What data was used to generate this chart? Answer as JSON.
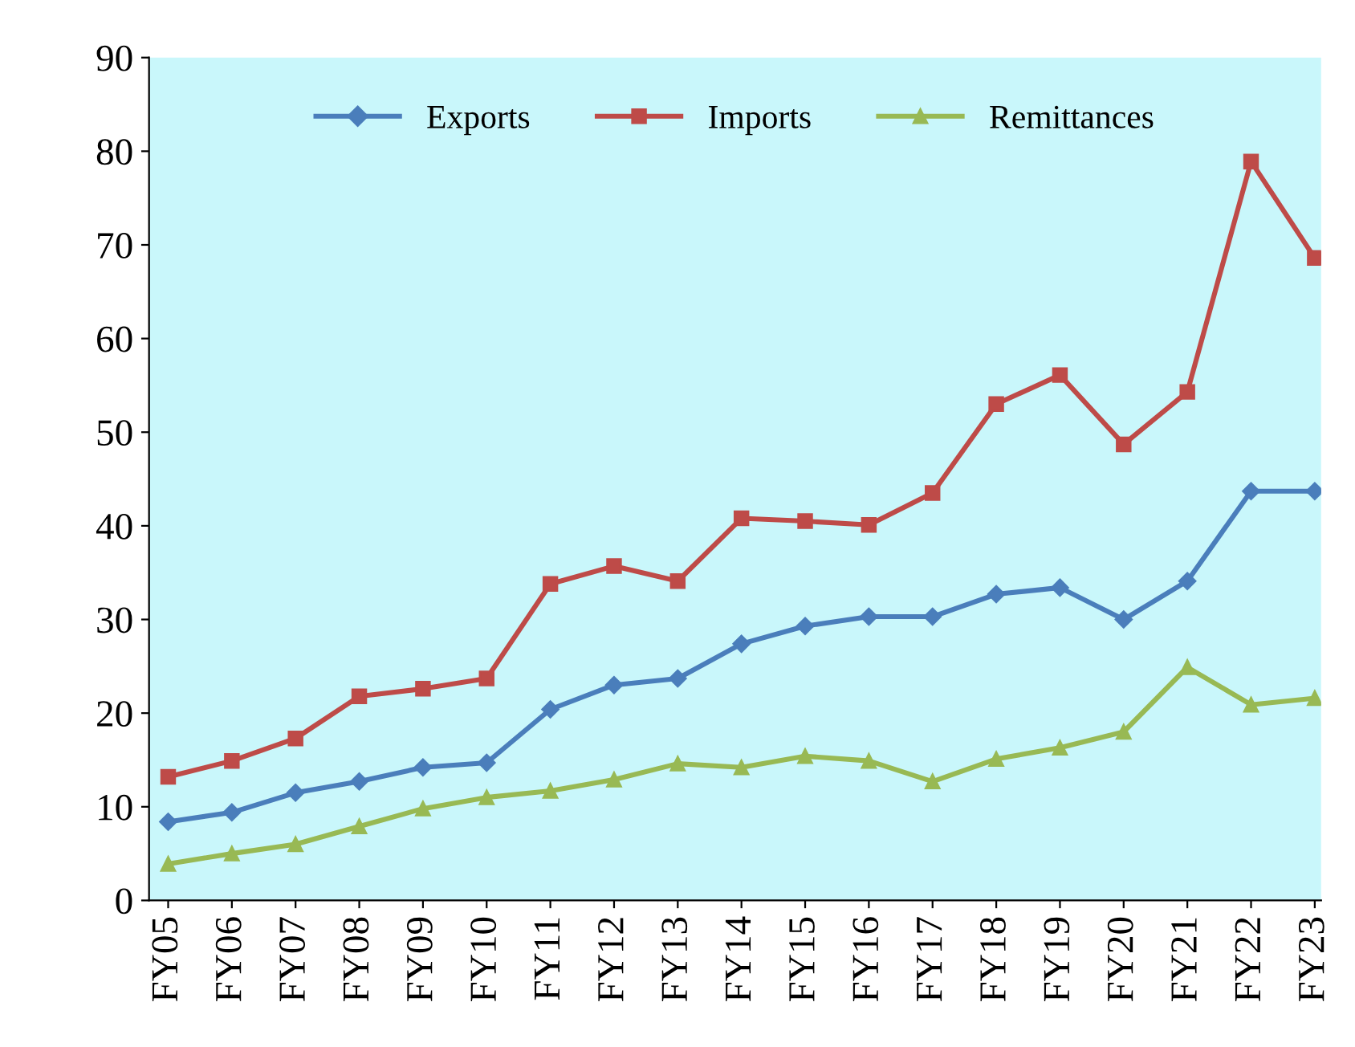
{
  "chart_data": {
    "type": "line",
    "categories": [
      "FY05",
      "FY06",
      "FY07",
      "FY08",
      "FY09",
      "FY10",
      "FY11",
      "FY12",
      "FY13",
      "FY14",
      "FY15",
      "FY16",
      "FY17",
      "FY18",
      "FY19",
      "FY20",
      "FY21",
      "FY22",
      "FY23"
    ],
    "series": [
      {
        "name": "Exports",
        "color": "#4a7ebb",
        "marker": "diamond",
        "values": [
          8.4,
          9.4,
          11.5,
          12.7,
          14.2,
          14.7,
          20.4,
          23.0,
          23.7,
          27.4,
          29.3,
          30.3,
          30.3,
          32.7,
          33.4,
          30.0,
          34.1,
          43.7,
          43.7
        ]
      },
      {
        "name": "Imports",
        "color": "#be4b48",
        "marker": "square",
        "values": [
          13.2,
          14.9,
          17.3,
          21.8,
          22.6,
          23.7,
          33.8,
          35.7,
          34.1,
          40.8,
          40.5,
          40.1,
          43.5,
          53.0,
          56.1,
          48.7,
          54.3,
          78.9,
          68.6
        ]
      },
      {
        "name": "Remittances",
        "color": "#98b954",
        "marker": "triangle",
        "values": [
          3.9,
          5.0,
          6.0,
          7.9,
          9.8,
          11.0,
          11.7,
          12.9,
          14.6,
          14.2,
          15.4,
          14.9,
          12.7,
          15.1,
          16.3,
          18.0,
          24.9,
          20.9,
          21.6
        ]
      }
    ],
    "ylim": [
      0,
      90
    ],
    "yticks": [
      0,
      10,
      20,
      30,
      40,
      50,
      60,
      70,
      80,
      90
    ],
    "grid": false,
    "legend": "top",
    "line_style": "solid"
  }
}
